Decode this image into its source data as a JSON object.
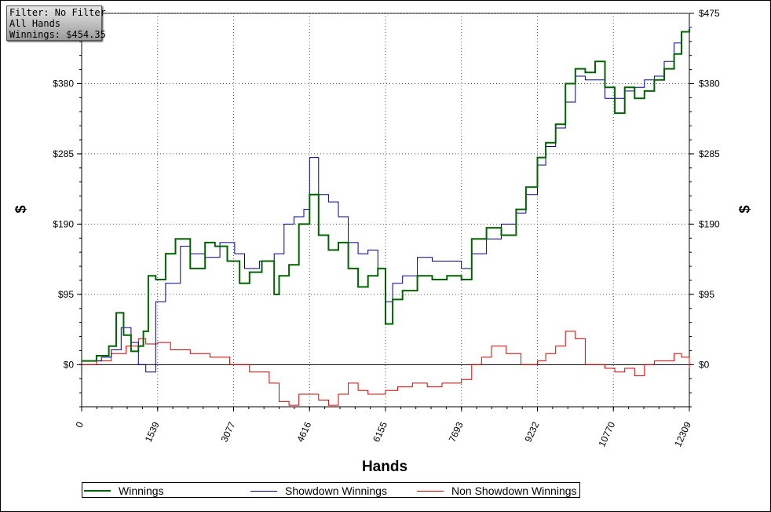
{
  "filter_box": {
    "line1": "Filter: No Filter",
    "line2": "All Hands",
    "line3": "Winnings: $454.35"
  },
  "chart_data": {
    "type": "line",
    "xlabel": "Hands",
    "ylabel": "$",
    "xlim": [
      0,
      12309
    ],
    "ylim": [
      -57,
      475
    ],
    "x_ticks": [
      "0",
      "1539",
      "3077",
      "4616",
      "6155",
      "7693",
      "9232",
      "10770",
      "12309"
    ],
    "y_ticks": [
      "$0",
      "$95",
      "$190",
      "$285",
      "$380",
      "$475"
    ],
    "grid": true,
    "legend_position": "bottom",
    "series": [
      {
        "name": "Winnings",
        "color": "#006400",
        "x": [
          0,
          300,
          550,
          700,
          850,
          1000,
          1150,
          1250,
          1350,
          1500,
          1700,
          1900,
          2200,
          2500,
          2700,
          2950,
          3200,
          3400,
          3650,
          3900,
          4000,
          4200,
          4400,
          4616,
          4800,
          5000,
          5200,
          5400,
          5600,
          5800,
          6000,
          6155,
          6300,
          6500,
          6800,
          7100,
          7400,
          7693,
          7900,
          8200,
          8500,
          8800,
          9000,
          9232,
          9400,
          9600,
          9800,
          10000,
          10200,
          10400,
          10600,
          10800,
          11000,
          11200,
          11400,
          11600,
          11800,
          12000,
          12150,
          12309
        ],
        "values": [
          5,
          12,
          25,
          70,
          40,
          18,
          25,
          45,
          120,
          115,
          150,
          170,
          130,
          165,
          160,
          140,
          110,
          125,
          140,
          95,
          120,
          135,
          190,
          230,
          175,
          155,
          165,
          130,
          105,
          120,
          130,
          55,
          88,
          100,
          120,
          115,
          120,
          115,
          170,
          185,
          175,
          210,
          240,
          280,
          300,
          325,
          380,
          400,
          395,
          410,
          375,
          340,
          375,
          360,
          370,
          385,
          400,
          420,
          450,
          454
        ]
      },
      {
        "name": "Showdown Winnings",
        "color": "#00008b",
        "x": [
          0,
          400,
          600,
          800,
          1000,
          1150,
          1300,
          1500,
          1700,
          2000,
          2200,
          2500,
          2800,
          3100,
          3300,
          3600,
          3900,
          4100,
          4300,
          4500,
          4616,
          4800,
          5000,
          5200,
          5400,
          5600,
          5800,
          6000,
          6155,
          6300,
          6500,
          6800,
          7100,
          7400,
          7693,
          7900,
          8200,
          8500,
          8800,
          9000,
          9232,
          9400,
          9600,
          9800,
          10000,
          10200,
          10400,
          10600,
          10800,
          11000,
          11200,
          11400,
          11600,
          11800,
          12000,
          12150,
          12309
        ],
        "values": [
          5,
          10,
          20,
          50,
          30,
          0,
          -10,
          85,
          110,
          160,
          150,
          145,
          165,
          150,
          130,
          140,
          150,
          190,
          200,
          210,
          280,
          230,
          220,
          200,
          165,
          150,
          155,
          130,
          85,
          110,
          120,
          145,
          140,
          140,
          130,
          150,
          170,
          190,
          205,
          230,
          270,
          295,
          320,
          355,
          390,
          385,
          385,
          360,
          360,
          370,
          375,
          385,
          390,
          410,
          435,
          450,
          460
        ]
      },
      {
        "name": "Non Showdown Winnings",
        "color": "#dd0000",
        "x": [
          0,
          300,
          600,
          900,
          1150,
          1300,
          1539,
          1800,
          2200,
          2600,
          3000,
          3400,
          3800,
          4000,
          4200,
          4400,
          4616,
          4800,
          5000,
          5200,
          5400,
          5600,
          5800,
          6155,
          6400,
          6700,
          7000,
          7300,
          7693,
          7900,
          8100,
          8300,
          8600,
          8900,
          9232,
          9400,
          9600,
          9800,
          10000,
          10200,
          10400,
          10600,
          10800,
          11000,
          11200,
          11400,
          11600,
          11800,
          12000,
          12150,
          12309
        ],
        "values": [
          0,
          5,
          15,
          25,
          35,
          28,
          30,
          20,
          15,
          10,
          0,
          -10,
          -25,
          -50,
          -55,
          -40,
          -40,
          -48,
          -55,
          -40,
          -25,
          -35,
          -40,
          -35,
          -30,
          -25,
          -30,
          -25,
          -20,
          0,
          10,
          25,
          15,
          0,
          5,
          15,
          25,
          45,
          35,
          0,
          0,
          -5,
          -10,
          -5,
          -15,
          0,
          5,
          5,
          15,
          10,
          -5
        ]
      }
    ]
  }
}
